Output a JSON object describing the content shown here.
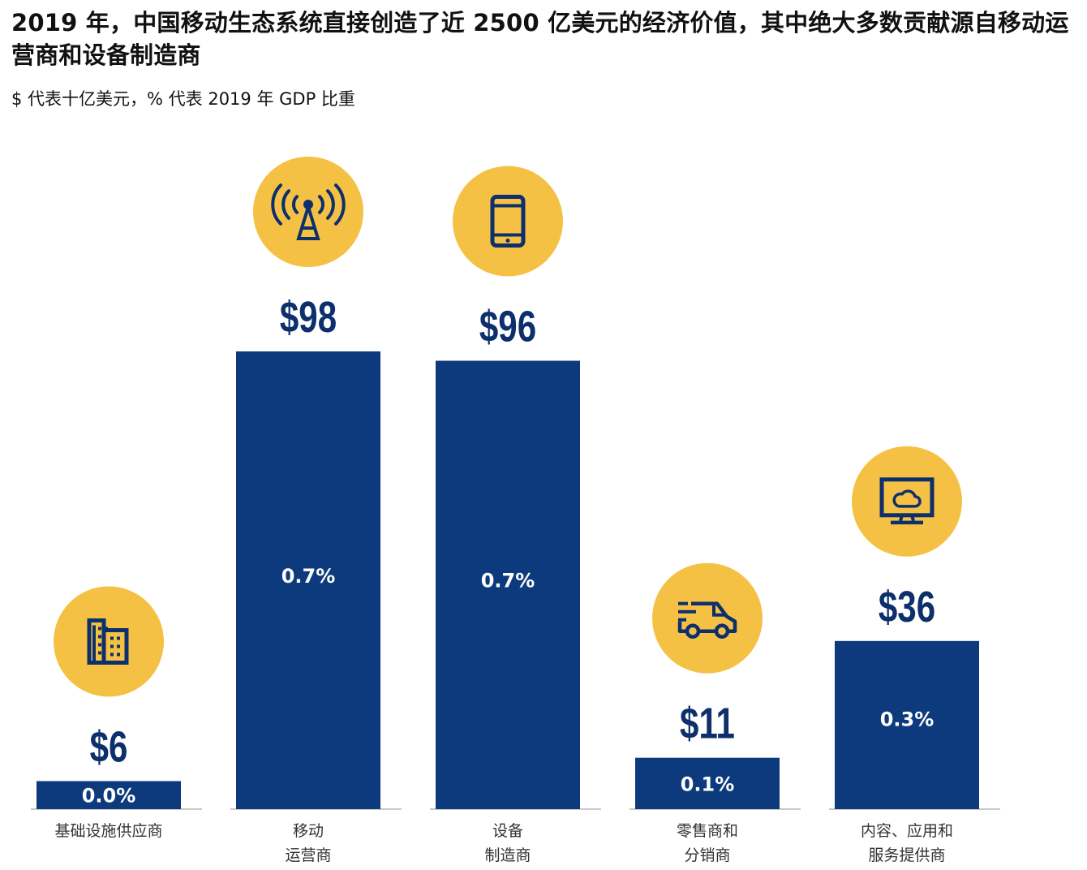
{
  "header": {
    "title": "2019 年，中国移动生态系统直接创造了近 2500 亿美元的经济价值，其中绝大多数贡献源自移动运营商和设备制造商",
    "subtitle": "$ 代表十亿美元，% 代表 2019 年 GDP 比重"
  },
  "colors": {
    "bar": "#0d3a7c",
    "icon_circle": "#f5c144",
    "icon_glyph": "#0d2f6b",
    "value_text": "#0d2f6b",
    "pct_text": "#ffffff",
    "baseline": "#b5b5b5"
  },
  "chart_data": {
    "type": "bar",
    "title": "2019 年，中国移动生态系统直接创造了近 2500 亿美元的经济价值，其中绝大多数贡献源自移动运营商和设备制造商",
    "subtitle": "$ 代表十亿美元，% 代表 2019 年 GDP 比重",
    "xlabel": "",
    "ylabel": "",
    "ylim": [
      0,
      98
    ],
    "grid": false,
    "legend": "none",
    "categories": [
      [
        "基础设施供应商"
      ],
      [
        "移动",
        "运营商"
      ],
      [
        "设备",
        "制造商"
      ],
      [
        "零售商和",
        "分销商"
      ],
      [
        "内容、应用和",
        "服务提供商"
      ]
    ],
    "values": [
      6,
      98,
      96,
      11,
      36
    ],
    "value_labels": [
      "$6",
      "$98",
      "$96",
      "$11",
      "$36"
    ],
    "gdp_share_labels": [
      "0.0%",
      "0.7%",
      "0.7%",
      "0.1%",
      "0.3%"
    ],
    "gdp_share": [
      0.0,
      0.7,
      0.7,
      0.1,
      0.3
    ],
    "icons": [
      "buildings-icon",
      "cell-tower-icon",
      "smartphone-icon",
      "delivery-truck-icon",
      "cloud-monitor-icon"
    ]
  }
}
